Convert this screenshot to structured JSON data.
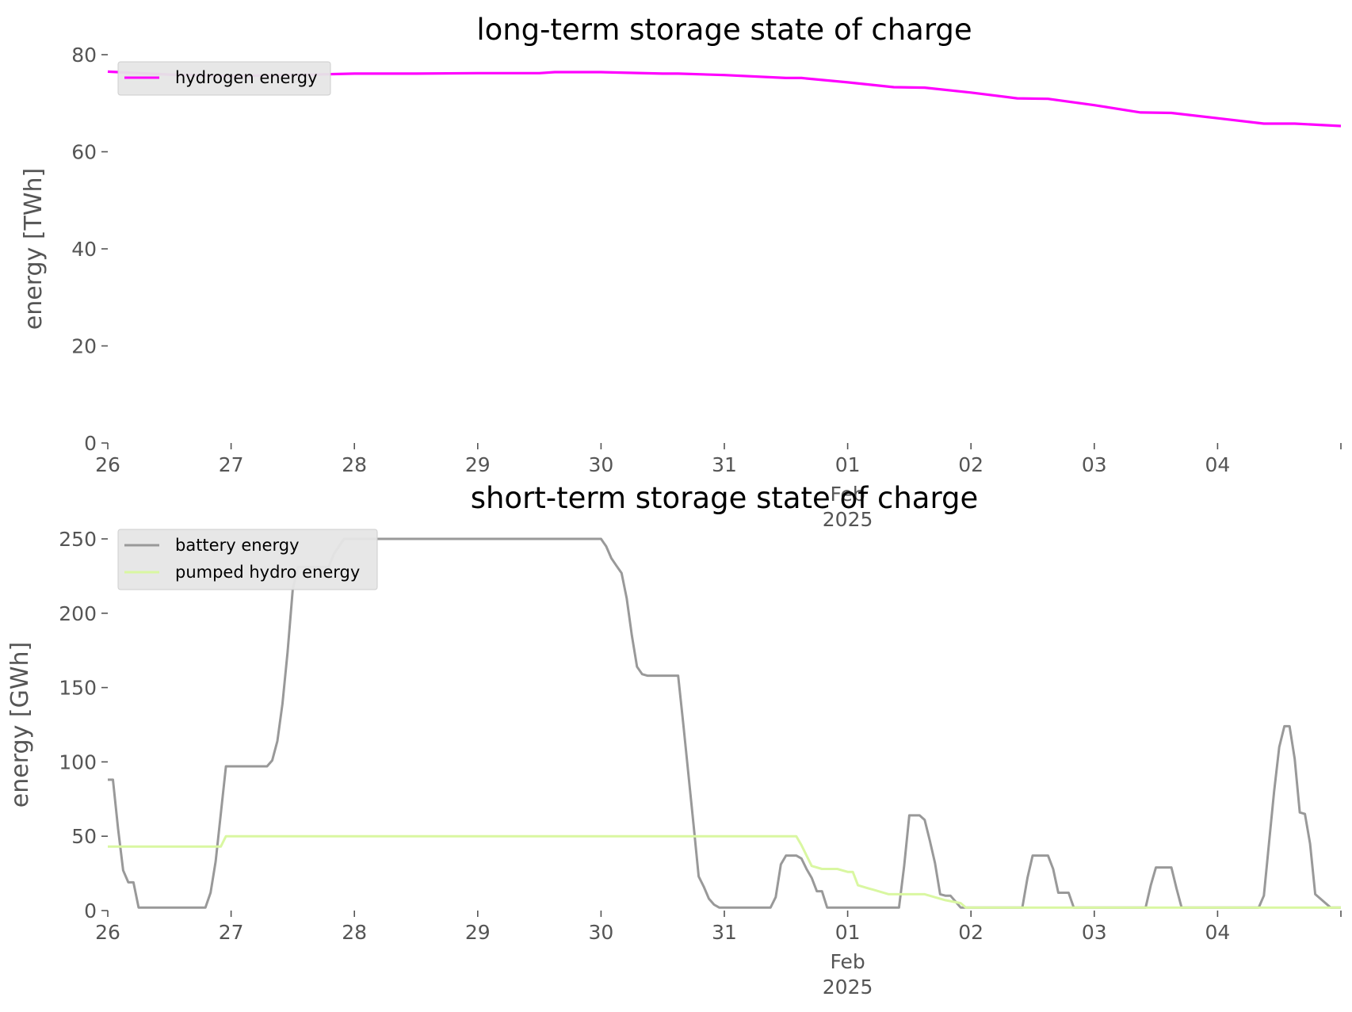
{
  "chart_data": [
    {
      "type": "line",
      "title": "long-term storage state of charge",
      "xlabel": "",
      "ylabel": "energy [TWh]",
      "ylim": [
        0,
        80
      ],
      "yticks": [
        0,
        20,
        40,
        60,
        80
      ],
      "xlim": [
        "2025-01-26",
        "2025-02-05"
      ],
      "xticks": [
        {
          "date": "2025-01-26",
          "label": "26",
          "sub": ""
        },
        {
          "date": "2025-01-27",
          "label": "27",
          "sub": ""
        },
        {
          "date": "2025-01-28",
          "label": "28",
          "sub": ""
        },
        {
          "date": "2025-01-29",
          "label": "29",
          "sub": ""
        },
        {
          "date": "2025-01-30",
          "label": "30",
          "sub": ""
        },
        {
          "date": "2025-01-31",
          "label": "31",
          "sub": ""
        },
        {
          "date": "2025-02-01",
          "label": "01",
          "sub": "Feb\n2025"
        },
        {
          "date": "2025-02-02",
          "label": "02",
          "sub": ""
        },
        {
          "date": "2025-02-03",
          "label": "03",
          "sub": ""
        },
        {
          "date": "2025-02-04",
          "label": "04",
          "sub": ""
        },
        {
          "date": "2025-02-05",
          "label": "",
          "sub": ""
        }
      ],
      "grid": false,
      "legend_position": "top-left",
      "series": [
        {
          "name": "hydrogen energy",
          "color": "#ff00ff",
          "points": [
            [
              "2025-01-26 00:00",
              76.5
            ],
            [
              "2025-01-26 12:00",
              75.9
            ],
            [
              "2025-01-27 00:00",
              75.6
            ],
            [
              "2025-01-27 12:00",
              75.8
            ],
            [
              "2025-01-28 00:00",
              76.1
            ],
            [
              "2025-01-28 12:00",
              76.1
            ],
            [
              "2025-01-29 00:00",
              76.2
            ],
            [
              "2025-01-29 12:00",
              76.2
            ],
            [
              "2025-01-29 15:00",
              76.4
            ],
            [
              "2025-01-30 00:00",
              76.4
            ],
            [
              "2025-01-30 12:00",
              76.1
            ],
            [
              "2025-01-30 15:00",
              76.1
            ],
            [
              "2025-01-31 00:00",
              75.8
            ],
            [
              "2025-01-31 12:00",
              75.2
            ],
            [
              "2025-01-31 15:00",
              75.2
            ],
            [
              "2025-02-01 00:00",
              74.3
            ],
            [
              "2025-02-01 09:00",
              73.3
            ],
            [
              "2025-02-01 15:00",
              73.2
            ],
            [
              "2025-02-02 00:00",
              72.2
            ],
            [
              "2025-02-02 09:00",
              71.0
            ],
            [
              "2025-02-02 15:00",
              70.9
            ],
            [
              "2025-02-03 00:00",
              69.6
            ],
            [
              "2025-02-03 09:00",
              68.1
            ],
            [
              "2025-02-03 15:00",
              68.0
            ],
            [
              "2025-02-04 00:00",
              66.9
            ],
            [
              "2025-02-04 09:00",
              65.8
            ],
            [
              "2025-02-04 15:00",
              65.8
            ],
            [
              "2025-02-05 00:00",
              65.3
            ]
          ]
        }
      ]
    },
    {
      "type": "line",
      "title": "short-term storage state of charge",
      "xlabel": "",
      "ylabel": "energy [GWh]",
      "ylim": [
        0,
        250
      ],
      "yticks": [
        0,
        50,
        100,
        150,
        200,
        250
      ],
      "xlim": [
        "2025-01-26",
        "2025-02-05"
      ],
      "xticks": [
        {
          "date": "2025-01-26",
          "label": "26",
          "sub": ""
        },
        {
          "date": "2025-01-27",
          "label": "27",
          "sub": ""
        },
        {
          "date": "2025-01-28",
          "label": "28",
          "sub": ""
        },
        {
          "date": "2025-01-29",
          "label": "29",
          "sub": ""
        },
        {
          "date": "2025-01-30",
          "label": "30",
          "sub": ""
        },
        {
          "date": "2025-01-31",
          "label": "31",
          "sub": ""
        },
        {
          "date": "2025-02-01",
          "label": "01",
          "sub": "Feb\n2025"
        },
        {
          "date": "2025-02-02",
          "label": "02",
          "sub": ""
        },
        {
          "date": "2025-02-03",
          "label": "03",
          "sub": ""
        },
        {
          "date": "2025-02-04",
          "label": "04",
          "sub": ""
        },
        {
          "date": "2025-02-05",
          "label": "",
          "sub": ""
        }
      ],
      "grid": false,
      "legend_position": "top-left",
      "series": [
        {
          "name": "battery energy",
          "color": "#999999",
          "points": [
            [
              "2025-01-26 00:00",
              88
            ],
            [
              "2025-01-26 01:00",
              88
            ],
            [
              "2025-01-26 02:00",
              55
            ],
            [
              "2025-01-26 03:00",
              27
            ],
            [
              "2025-01-26 04:00",
              19
            ],
            [
              "2025-01-26 05:00",
              19
            ],
            [
              "2025-01-26 06:00",
              2
            ],
            [
              "2025-01-26 19:00",
              2
            ],
            [
              "2025-01-26 20:00",
              12
            ],
            [
              "2025-01-26 21:00",
              33
            ],
            [
              "2025-01-26 22:00",
              65
            ],
            [
              "2025-01-26 23:00",
              97
            ],
            [
              "2025-01-27 07:00",
              97
            ],
            [
              "2025-01-27 08:00",
              101
            ],
            [
              "2025-01-27 09:00",
              114
            ],
            [
              "2025-01-27 10:00",
              139
            ],
            [
              "2025-01-27 11:00",
              174
            ],
            [
              "2025-01-27 12:00",
              216
            ],
            [
              "2025-01-27 13:00",
              231
            ],
            [
              "2025-01-27 19:00",
              231
            ],
            [
              "2025-01-27 20:00",
              240
            ],
            [
              "2025-01-27 21:00",
              245
            ],
            [
              "2025-01-27 22:00",
              250
            ],
            [
              "2025-01-30 00:00",
              250
            ],
            [
              "2025-01-30 01:00",
              245
            ],
            [
              "2025-01-30 02:00",
              237
            ],
            [
              "2025-01-30 03:00",
              232
            ],
            [
              "2025-01-30 04:00",
              227
            ],
            [
              "2025-01-30 05:00",
              210
            ],
            [
              "2025-01-30 06:00",
              185
            ],
            [
              "2025-01-30 07:00",
              164
            ],
            [
              "2025-01-30 08:00",
              159
            ],
            [
              "2025-01-30 09:00",
              158
            ],
            [
              "2025-01-30 15:00",
              158
            ],
            [
              "2025-01-30 16:00",
              126
            ],
            [
              "2025-01-30 17:00",
              92
            ],
            [
              "2025-01-30 18:00",
              58
            ],
            [
              "2025-01-30 19:00",
              23
            ],
            [
              "2025-01-30 20:00",
              16
            ],
            [
              "2025-01-30 21:00",
              8
            ],
            [
              "2025-01-30 22:00",
              4
            ],
            [
              "2025-01-30 23:00",
              2
            ],
            [
              "2025-01-31 09:00",
              2
            ],
            [
              "2025-01-31 10:00",
              9
            ],
            [
              "2025-01-31 11:00",
              31
            ],
            [
              "2025-01-31 12:00",
              37
            ],
            [
              "2025-01-31 14:00",
              37
            ],
            [
              "2025-01-31 15:00",
              35
            ],
            [
              "2025-01-31 16:00",
              28
            ],
            [
              "2025-01-31 17:00",
              22
            ],
            [
              "2025-01-31 18:00",
              13
            ],
            [
              "2025-01-31 19:00",
              13
            ],
            [
              "2025-01-31 20:00",
              2
            ],
            [
              "2025-02-01 10:00",
              2
            ],
            [
              "2025-02-01 11:00",
              30
            ],
            [
              "2025-02-01 12:00",
              64
            ],
            [
              "2025-02-01 14:00",
              64
            ],
            [
              "2025-02-01 15:00",
              61
            ],
            [
              "2025-02-01 16:00",
              47
            ],
            [
              "2025-02-01 17:00",
              32
            ],
            [
              "2025-02-01 18:00",
              11
            ],
            [
              "2025-02-01 19:00",
              10
            ],
            [
              "2025-02-01 20:00",
              10
            ],
            [
              "2025-02-01 22:00",
              2
            ],
            [
              "2025-02-02 10:00",
              2
            ],
            [
              "2025-02-02 11:00",
              22
            ],
            [
              "2025-02-02 12:00",
              37
            ],
            [
              "2025-02-02 14:00",
              37
            ],
            [
              "2025-02-02 15:00",
              37
            ],
            [
              "2025-02-02 16:00",
              28
            ],
            [
              "2025-02-02 17:00",
              12
            ],
            [
              "2025-02-02 18:00",
              12
            ],
            [
              "2025-02-02 19:00",
              12
            ],
            [
              "2025-02-02 20:00",
              2
            ],
            [
              "2025-02-03 10:00",
              2
            ],
            [
              "2025-02-03 11:00",
              17
            ],
            [
              "2025-02-03 12:00",
              29
            ],
            [
              "2025-02-03 15:00",
              29
            ],
            [
              "2025-02-03 16:00",
              15
            ],
            [
              "2025-02-03 17:00",
              2
            ],
            [
              "2025-02-04 08:00",
              2
            ],
            [
              "2025-02-04 09:00",
              10
            ],
            [
              "2025-02-04 10:00",
              45
            ],
            [
              "2025-02-04 11:00",
              80
            ],
            [
              "2025-02-04 12:00",
              110
            ],
            [
              "2025-02-04 13:00",
              124
            ],
            [
              "2025-02-04 14:00",
              124
            ],
            [
              "2025-02-04 15:00",
              102
            ],
            [
              "2025-02-04 16:00",
              66
            ],
            [
              "2025-02-04 17:00",
              65
            ],
            [
              "2025-02-04 18:00",
              45
            ],
            [
              "2025-02-04 19:00",
              11
            ],
            [
              "2025-02-04 20:00",
              8
            ],
            [
              "2025-02-04 22:00",
              2
            ],
            [
              "2025-02-05 00:00",
              2
            ]
          ]
        },
        {
          "name": "pumped hydro energy",
          "color": "#d9f7a1",
          "points": [
            [
              "2025-01-26 00:00",
              43
            ],
            [
              "2025-01-26 22:00",
              43
            ],
            [
              "2025-01-26 23:00",
              50
            ],
            [
              "2025-01-31 13:00",
              50
            ],
            [
              "2025-01-31 14:00",
              50
            ],
            [
              "2025-01-31 15:00",
              44
            ],
            [
              "2025-01-31 17:00",
              30
            ],
            [
              "2025-01-31 19:00",
              28
            ],
            [
              "2025-01-31 22:00",
              28
            ],
            [
              "2025-02-01 00:00",
              26
            ],
            [
              "2025-02-01 01:00",
              26
            ],
            [
              "2025-02-01 02:00",
              17
            ],
            [
              "2025-02-01 04:00",
              15
            ],
            [
              "2025-02-01 05:00",
              14
            ],
            [
              "2025-02-01 08:00",
              11
            ],
            [
              "2025-02-01 09:00",
              11
            ],
            [
              "2025-02-01 15:00",
              11
            ],
            [
              "2025-02-01 19:00",
              7
            ],
            [
              "2025-02-01 22:00",
              5
            ],
            [
              "2025-02-01 23:00",
              2
            ],
            [
              "2025-02-05 00:00",
              2
            ]
          ]
        }
      ]
    }
  ]
}
